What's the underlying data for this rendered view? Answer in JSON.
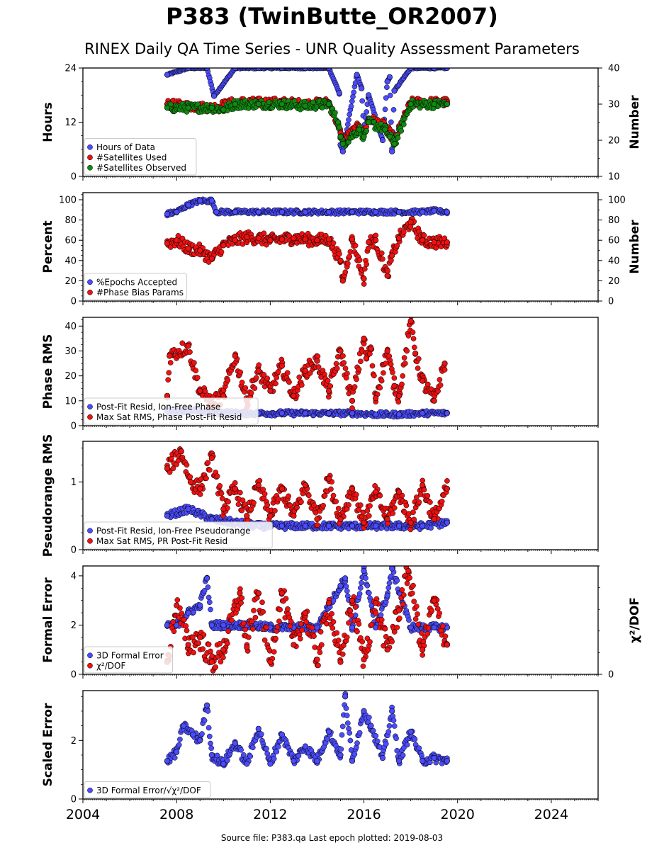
{
  "header": {
    "title": "P383 (TwinButte_OR2007)",
    "subtitle": "RINEX Daily QA Time Series - UNR Quality Assessment Parameters"
  },
  "footer": {
    "source": "Source file: P383.qa Last epoch plotted: 2019-08-03"
  },
  "chart_data": [
    {
      "id": "hours",
      "type": "scatter",
      "ylabel": "Hours",
      "y2label": "Number",
      "xlim": [
        2004,
        2026
      ],
      "ylim": [
        0,
        24
      ],
      "y2lim": [
        10,
        40
      ],
      "yticks": [
        "0",
        "12",
        "24"
      ],
      "y2ticks": [
        "10",
        "20",
        "30",
        "40"
      ],
      "legend_position": "lower-left",
      "series": [
        {
          "name": "Hours of Data",
          "axis": "left",
          "color": "#4c4cff",
          "x": [
            2007.6,
            2008.5,
            2009.3,
            2009.6,
            2010.5,
            2011.5,
            2012.5,
            2013.5,
            2014.5,
            2014.95,
            2015.0,
            2015.1,
            2015.7,
            2015.9,
            2016.0,
            2016.2,
            2016.8,
            2017.0,
            2017.1,
            2017.2,
            2017.3,
            2018.0,
            2019.0,
            2019.55
          ],
          "y": [
            22.5,
            24,
            24,
            17.8,
            24,
            24,
            24,
            24,
            24,
            18.5,
            7,
            5.5,
            22.5,
            19.5,
            10,
            18,
            8,
            21,
            22,
            5.5,
            19,
            24,
            24,
            24
          ]
        },
        {
          "name": "#Satellites Used",
          "axis": "right",
          "color": "#ee1111",
          "x": [
            2007.6,
            2008.5,
            2009.5,
            2010.5,
            2011.5,
            2012.5,
            2013.5,
            2014.5,
            2014.9,
            2015.0,
            2015.1,
            2015.8,
            2016.0,
            2016.2,
            2016.9,
            2017.1,
            2017.3,
            2018.0,
            2019.0,
            2019.55
          ],
          "y": [
            30,
            29.5,
            29,
            30.5,
            30.5,
            30.5,
            30,
            30.5,
            24,
            22,
            20,
            24,
            22,
            26,
            24,
            22,
            20,
            30.5,
            30.5,
            30.5
          ]
        },
        {
          "name": "#Satellites Observed",
          "axis": "right",
          "color": "#118811",
          "x": [
            2007.6,
            2008.5,
            2009.5,
            2010.0,
            2010.5,
            2011.5,
            2012.5,
            2013.5,
            2014.5,
            2014.9,
            2015.0,
            2015.1,
            2015.8,
            2016.0,
            2016.2,
            2016.9,
            2017.1,
            2017.3,
            2018.0,
            2019.0,
            2019.55
          ],
          "y": [
            29,
            29,
            29,
            28.5,
            30,
            30,
            30,
            29.5,
            30,
            25,
            21,
            19,
            23,
            21,
            25,
            23,
            21,
            19,
            30,
            30,
            30
          ]
        }
      ]
    },
    {
      "id": "percent",
      "type": "scatter",
      "ylabel": "Percent",
      "y2label": "Number",
      "xlim": [
        2004,
        2026
      ],
      "ylim": [
        0,
        107
      ],
      "y2lim": [
        0,
        107
      ],
      "yticks": [
        "0",
        "20",
        "40",
        "60",
        "80",
        "100"
      ],
      "y2ticks": [
        "0",
        "20",
        "40",
        "60",
        "80",
        "100"
      ],
      "legend_position": "lower-left",
      "series": [
        {
          "name": "%Epochs Accepted",
          "axis": "left",
          "color": "#4c4cff",
          "x": [
            2007.6,
            2008.0,
            2008.5,
            2009.0,
            2009.5,
            2009.7,
            2010.5,
            2011.5,
            2012.5,
            2013.5,
            2014.5,
            2015.5,
            2016.5,
            2017.5,
            2018.5,
            2019.0,
            2019.55
          ],
          "y": [
            86,
            88,
            95,
            99,
            99,
            88,
            88,
            88,
            88,
            88,
            88,
            88,
            88,
            88,
            88,
            89,
            88
          ]
        },
        {
          "name": "#Phase Bias Params",
          "axis": "right",
          "color": "#ee1111",
          "x": [
            2007.6,
            2008.0,
            2008.5,
            2009.0,
            2009.5,
            2010.0,
            2010.5,
            2011.0,
            2011.5,
            2012.0,
            2012.5,
            2013.0,
            2013.5,
            2014.0,
            2014.5,
            2015.0,
            2015.1,
            2015.5,
            2016.0,
            2016.2,
            2016.5,
            2017.0,
            2017.2,
            2017.5,
            2018.0,
            2018.5,
            2019.0,
            2019.55
          ],
          "y": [
            57,
            60,
            52,
            50,
            42,
            55,
            60,
            63,
            62,
            60,
            61,
            62,
            61,
            60,
            61,
            40,
            20,
            61,
            22,
            58,
            60,
            25,
            45,
            62,
            78,
            60,
            58,
            58
          ]
        }
      ]
    },
    {
      "id": "phase",
      "type": "scatter",
      "ylabel": "Phase RMS",
      "xlim": [
        2004,
        2026
      ],
      "ylim": [
        0,
        43.5
      ],
      "yticks": [
        "0",
        "10",
        "20",
        "30",
        "40"
      ],
      "legend_position": "lower-left",
      "series": [
        {
          "name": "Post-Fit Resid, Ion-Free Phase",
          "axis": "left",
          "color": "#4c4cff",
          "x": [
            2007.6,
            2008.5,
            2009.5,
            2010.5,
            2011.5,
            2012.5,
            2013.5,
            2014.5,
            2015.5,
            2016.5,
            2017.5,
            2018.5,
            2019.55
          ],
          "y": [
            6,
            6,
            5.5,
            5,
            5,
            5,
            5,
            5,
            5,
            4.5,
            4.5,
            5,
            5
          ]
        },
        {
          "name": "Max Sat RMS, Phase Post-Fit Resid",
          "axis": "left",
          "color": "#ee1111",
          "x": [
            2007.6,
            2007.7,
            2008.5,
            2009.0,
            2009.5,
            2010.0,
            2010.5,
            2011.0,
            2011.5,
            2012.0,
            2012.5,
            2013.0,
            2013.5,
            2014.0,
            2014.5,
            2015.0,
            2015.5,
            2016.0,
            2016.1,
            2016.3,
            2016.5,
            2017.0,
            2017.3,
            2017.5,
            2018.0,
            2018.2,
            2018.5,
            2019.0,
            2019.45
          ],
          "y": [
            12,
            28,
            32,
            14,
            9,
            12,
            28,
            10,
            22,
            14,
            24,
            12,
            22,
            26,
            14,
            30,
            10,
            35,
            27,
            31,
            11,
            30,
            16,
            12,
            42,
            29,
            18,
            10,
            25
          ]
        }
      ]
    },
    {
      "id": "pseudorange",
      "type": "scatter",
      "ylabel": "Pseudorange RMS",
      "xlim": [
        2004,
        2026
      ],
      "ylim": [
        0,
        1.6
      ],
      "yticks": [
        "0",
        "1"
      ],
      "legend_position": "lower-left",
      "series": [
        {
          "name": "Post-Fit Resid, Ion-Free Pseudorange",
          "axis": "left",
          "color": "#4c4cff",
          "x": [
            2007.6,
            2008.5,
            2009.5,
            2010.5,
            2011.5,
            2012.5,
            2013.5,
            2014.5,
            2015.5,
            2016.5,
            2017.5,
            2018.5,
            2019.55
          ],
          "y": [
            0.5,
            0.6,
            0.45,
            0.4,
            0.35,
            0.35,
            0.35,
            0.35,
            0.35,
            0.35,
            0.35,
            0.35,
            0.4
          ]
        },
        {
          "name": "Max Sat RMS, PR Post-Fit Resid",
          "axis": "left",
          "color": "#ee1111",
          "x": [
            2007.6,
            2008.2,
            2008.6,
            2009.0,
            2009.5,
            2010.0,
            2010.5,
            2011.0,
            2011.5,
            2012.0,
            2012.5,
            2013.0,
            2013.5,
            2014.0,
            2014.5,
            2015.0,
            2015.5,
            2016.0,
            2016.5,
            2017.0,
            2017.5,
            2018.0,
            2018.5,
            2019.0,
            2019.55
          ],
          "y": [
            1.2,
            1.45,
            1.0,
            0.9,
            1.35,
            0.6,
            0.9,
            0.5,
            0.95,
            0.5,
            0.9,
            0.5,
            0.95,
            0.45,
            1.05,
            0.45,
            0.9,
            0.4,
            0.85,
            0.45,
            0.85,
            0.4,
            0.95,
            0.45,
            0.9
          ]
        }
      ]
    },
    {
      "id": "formal",
      "type": "scatter",
      "ylabel": "Formal Error",
      "y2label": "χ²/DOF",
      "xlim": [
        2004,
        2026
      ],
      "ylim": [
        0,
        4.4
      ],
      "y2lim": [
        0,
        4.4
      ],
      "yticks": [
        "0",
        "2",
        "4"
      ],
      "y2ticks": [
        "0"
      ],
      "legend_position": "lower-left",
      "series": [
        {
          "name": "3D Formal Error",
          "axis": "left",
          "color": "#4c4cff",
          "x": [
            2007.6,
            2008.0,
            2008.5,
            2009.0,
            2009.3,
            2009.5,
            2010.0,
            2011.0,
            2012.0,
            2013.0,
            2014.0,
            2015.0,
            2015.2,
            2015.5,
            2016.0,
            2016.5,
            2017.0,
            2017.2,
            2018.0,
            2019.0,
            2019.55
          ],
          "y": [
            2.0,
            2.0,
            2.5,
            2.8,
            3.9,
            2.0,
            2.0,
            2.0,
            1.9,
            1.9,
            1.9,
            3.6,
            3.9,
            1.9,
            4.2,
            1.9,
            3.2,
            4.3,
            1.9,
            1.9,
            1.9
          ]
        },
        {
          "name": "χ²/DOF",
          "axis": "right",
          "color": "#ee1111",
          "x": [
            2007.6,
            2008.0,
            2008.5,
            2009.0,
            2009.5,
            2010.0,
            2010.7,
            2011.0,
            2011.5,
            2012.0,
            2012.5,
            2013.0,
            2013.5,
            2014.0,
            2014.5,
            2015.0,
            2015.5,
            2016.0,
            2016.5,
            2017.0,
            2017.5,
            2017.9,
            2018.5,
            2019.0,
            2019.55
          ],
          "y": [
            0.5,
            2.8,
            1.2,
            1.5,
            0.5,
            1.0,
            3.3,
            1.1,
            3.3,
            0.5,
            3.3,
            1.2,
            2.5,
            0.6,
            2.9,
            0.5,
            3.0,
            0.6,
            2.9,
            1.0,
            2.6,
            4.2,
            1.0,
            3.0,
            1.2
          ]
        }
      ]
    },
    {
      "id": "scaled",
      "type": "scatter",
      "ylabel": "Scaled Error",
      "xlim": [
        2004,
        2026
      ],
      "ylim": [
        0,
        3.7
      ],
      "yticks": [
        "0",
        "2"
      ],
      "xticks": [
        "2004",
        "2008",
        "2012",
        "2016",
        "2020",
        "2024"
      ],
      "legend_position": "lower-left",
      "series": [
        {
          "name": "3D Formal Error/√χ²/DOF",
          "axis": "left",
          "color": "#4c4cff",
          "x": [
            2007.6,
            2008.0,
            2008.3,
            2008.7,
            2009.0,
            2009.3,
            2009.5,
            2010.0,
            2010.5,
            2011.0,
            2011.5,
            2012.0,
            2012.5,
            2013.0,
            2013.5,
            2014.0,
            2014.5,
            2015.0,
            2015.2,
            2015.5,
            2016.0,
            2016.3,
            2016.8,
            2017.2,
            2017.5,
            2018.0,
            2018.5,
            2019.0,
            2019.55
          ],
          "y": [
            1.3,
            1.6,
            2.5,
            2.2,
            2.0,
            3.2,
            1.5,
            1.2,
            1.9,
            1.2,
            2.4,
            1.2,
            2.2,
            1.3,
            1.8,
            1.3,
            2.3,
            1.5,
            3.5,
            1.3,
            3.0,
            2.5,
            1.4,
            3.0,
            1.3,
            2.3,
            1.3,
            1.4,
            1.3
          ]
        }
      ]
    }
  ]
}
